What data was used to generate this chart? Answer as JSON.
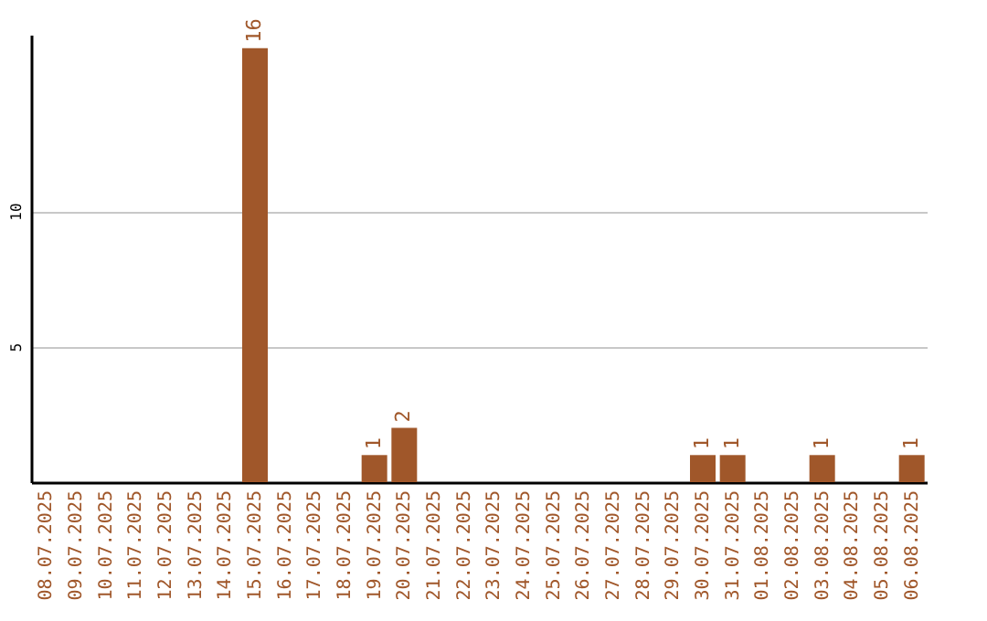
{
  "chart_data": {
    "type": "bar",
    "categories": [
      "08.07.2025",
      "09.07.2025",
      "10.07.2025",
      "11.07.2025",
      "12.07.2025",
      "13.07.2025",
      "14.07.2025",
      "15.07.2025",
      "16.07.2025",
      "17.07.2025",
      "18.07.2025",
      "19.07.2025",
      "20.07.2025",
      "21.07.2025",
      "22.07.2025",
      "23.07.2025",
      "24.07.2025",
      "25.07.2025",
      "26.07.2025",
      "27.07.2025",
      "28.07.2025",
      "29.07.2025",
      "30.07.2025",
      "31.07.2025",
      "01.08.2025",
      "02.08.2025",
      "03.08.2025",
      "04.08.2025",
      "05.08.2025",
      "06.08.2025"
    ],
    "values": [
      0,
      0,
      0,
      0,
      0,
      0,
      0,
      16,
      0,
      0,
      0,
      1,
      2,
      0,
      0,
      0,
      0,
      0,
      0,
      0,
      0,
      0,
      1,
      1,
      0,
      0,
      1,
      0,
      0,
      1
    ],
    "value_labels": [
      null,
      null,
      null,
      null,
      null,
      null,
      null,
      "16",
      null,
      null,
      null,
      "1",
      "2",
      null,
      null,
      null,
      null,
      null,
      null,
      null,
      null,
      null,
      "1",
      "1",
      null,
      null,
      "1",
      null,
      null,
      "1"
    ],
    "color": "#a0572a",
    "ylim": [
      0,
      16.5
    ],
    "yticks": [
      5,
      10
    ],
    "grid": "y"
  }
}
